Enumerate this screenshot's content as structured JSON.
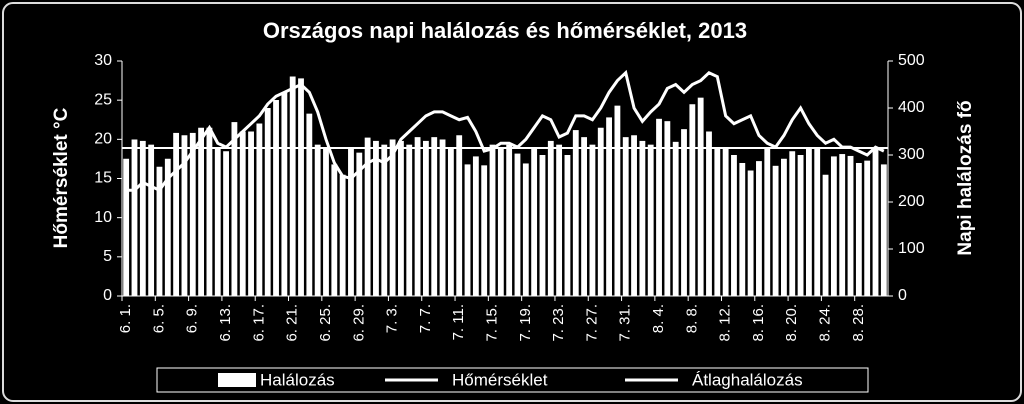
{
  "chart_data": {
    "type": "bar-line",
    "title": "Országos napi halálozás és hőmérséklet, 2013",
    "y_label": "Hőmérséklet °C",
    "y2_label": "Napi halálozás fő",
    "categories": [
      "6. 1.",
      null,
      null,
      null,
      "6. 5.",
      null,
      null,
      null,
      "6. 9.",
      null,
      null,
      null,
      "6. 13.",
      null,
      null,
      null,
      "6. 17.",
      null,
      null,
      null,
      "6. 21.",
      null,
      null,
      null,
      "6. 25.",
      null,
      null,
      null,
      "6. 29.",
      null,
      null,
      null,
      "7. 3.",
      null,
      null,
      null,
      "7. 7.",
      null,
      null,
      null,
      "7. 11.",
      null,
      null,
      null,
      "7. 15.",
      null,
      null,
      null,
      "7. 19.",
      null,
      null,
      null,
      "7. 23.",
      null,
      null,
      null,
      "7. 27.",
      null,
      null,
      null,
      "7. 31.",
      null,
      null,
      null,
      "8. 4.",
      null,
      null,
      null,
      "8. 8.",
      null,
      null,
      null,
      "8. 12.",
      null,
      null,
      null,
      "8. 16.",
      null,
      null,
      null,
      "8. 20.",
      null,
      null,
      null,
      "8. 24.",
      null,
      null,
      null,
      "8. 28.",
      null,
      null,
      null
    ],
    "series": [
      {
        "name": "Halálozás",
        "type": "bar",
        "axis": "y2",
        "color": "#ffffff",
        "values": [
          292,
          333,
          330,
          322,
          275,
          292,
          347,
          342,
          347,
          358,
          358,
          317,
          308,
          370,
          350,
          350,
          367,
          400,
          417,
          433,
          467,
          463,
          388,
          322,
          313,
          280,
          258,
          313,
          305,
          337,
          330,
          322,
          333,
          330,
          322,
          338,
          330,
          338,
          333,
          313,
          342,
          280,
          297,
          278,
          322,
          317,
          322,
          303,
          282,
          313,
          300,
          330,
          322,
          300,
          353,
          338,
          322,
          358,
          380,
          405,
          338,
          342,
          330,
          322,
          377,
          372,
          328,
          355,
          408,
          422,
          350,
          313,
          313,
          300,
          283,
          267,
          287,
          313,
          277,
          292,
          308,
          300,
          313,
          313,
          258,
          297,
          302,
          298,
          283,
          288,
          313,
          280
        ]
      },
      {
        "name": "Hőmérséklet",
        "type": "line",
        "color": "#ffffff",
        "values": [
          13.5,
          13.5,
          14.5,
          14,
          13.5,
          15,
          16,
          17,
          18.5,
          20,
          21.5,
          19.5,
          19,
          20,
          21,
          22,
          23,
          24.5,
          25.5,
          26,
          26.5,
          27,
          26,
          23.5,
          20,
          17,
          15.3,
          15,
          16,
          17,
          17.5,
          17,
          18,
          20,
          21,
          22,
          23,
          23.5,
          23.5,
          23,
          22.5,
          22.8,
          21,
          18.5,
          18.8,
          19.5,
          19.5,
          19,
          20,
          21.5,
          23,
          22.5,
          20.3,
          20.8,
          23,
          23,
          22.5,
          24,
          26,
          27.5,
          28.5,
          24,
          22.3,
          23.5,
          24.5,
          26.5,
          27,
          26,
          27,
          27.5,
          28.5,
          28,
          23,
          22,
          22.5,
          23,
          20.5,
          19.5,
          19,
          20.5,
          22.5,
          24,
          22,
          20.5,
          19.5,
          20,
          19,
          19,
          18.5,
          18,
          19,
          18.5
        ]
      },
      {
        "name": "Átlaghalálozás",
        "type": "hline",
        "axis": "y2",
        "color": "#ffffff",
        "value": 315
      }
    ],
    "ylim": [
      0,
      30
    ],
    "yticks": [
      0,
      5,
      10,
      15,
      20,
      25,
      30
    ],
    "y2lim": [
      0,
      500
    ],
    "y2ticks": [
      0,
      100,
      200,
      300,
      400,
      500
    ],
    "legend": "bottom"
  }
}
